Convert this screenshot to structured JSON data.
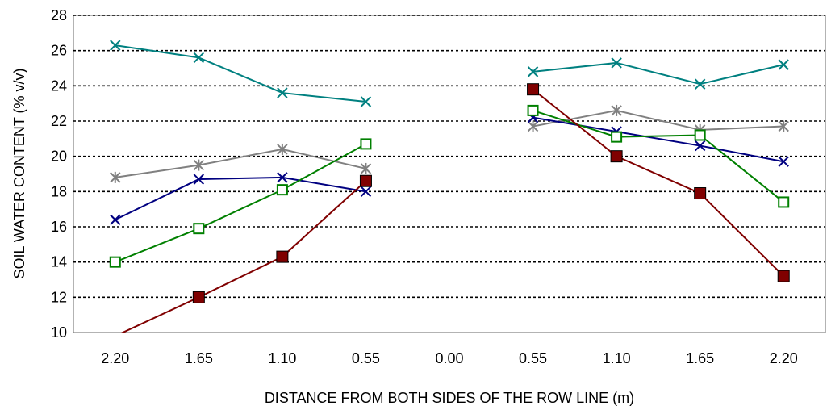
{
  "chart_data": {
    "type": "line",
    "title": "",
    "xlabel": "DISTANCE FROM BOTH SIDES OF THE ROW LINE (m)",
    "ylabel": "SOIL WATER CONTENT (% v/v)",
    "categories": [
      "2.20",
      "1.65",
      "1.10",
      "0.55",
      "0.00",
      "0.55",
      "1.10",
      "1.65",
      "2.20"
    ],
    "ylim": [
      10,
      28
    ],
    "yticks": [
      "10",
      "12",
      "14",
      "16",
      "18",
      "20",
      "22",
      "24",
      "26",
      "28"
    ],
    "grid": "horizontal dotted",
    "legend": "none",
    "series": [
      {
        "color": "#008080",
        "marker": "x",
        "values": [
          26.3,
          25.6,
          23.6,
          23.1,
          null,
          24.8,
          25.3,
          24.1,
          25.2
        ]
      },
      {
        "color": "#808080",
        "marker": "asterisk",
        "values": [
          18.8,
          19.5,
          20.4,
          19.3,
          null,
          21.7,
          22.6,
          21.5,
          21.7
        ]
      },
      {
        "color": "#000080",
        "marker": "x",
        "values": [
          16.4,
          18.7,
          18.8,
          18.0,
          null,
          22.2,
          21.4,
          20.6,
          19.7
        ]
      },
      {
        "color": "#008000",
        "marker": "open-square",
        "values": [
          14.0,
          15.9,
          18.1,
          20.7,
          null,
          22.6,
          21.1,
          21.2,
          17.4
        ]
      },
      {
        "color": "#800000",
        "marker": "filled-square",
        "values": [
          9.8,
          12.0,
          14.3,
          18.6,
          null,
          23.8,
          20.0,
          17.9,
          13.2
        ]
      }
    ]
  }
}
